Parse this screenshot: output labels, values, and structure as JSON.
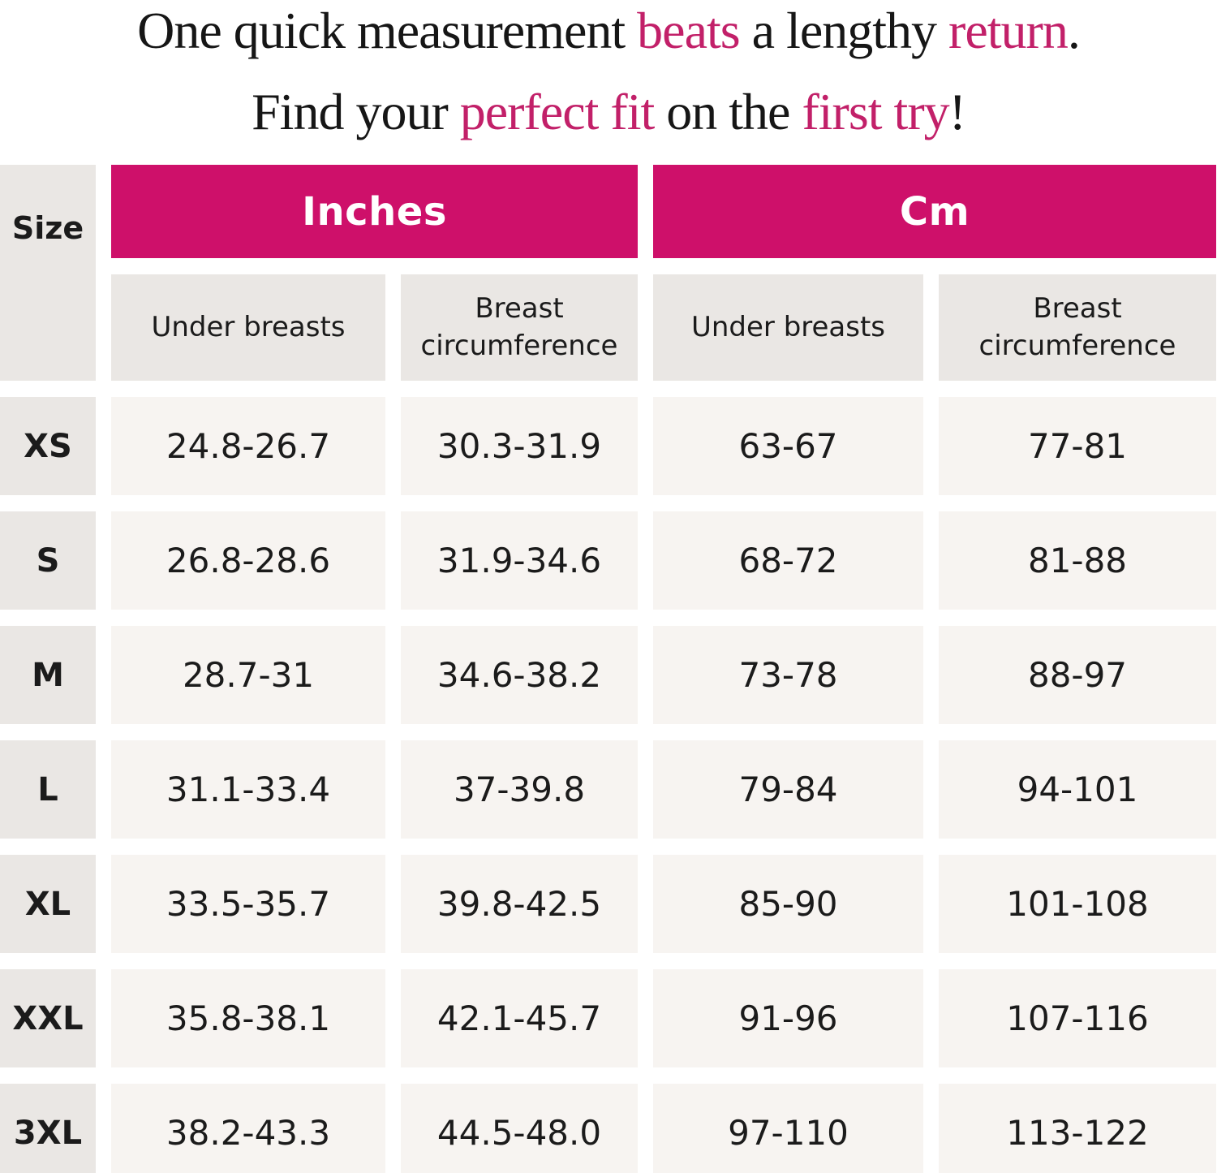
{
  "headline": {
    "line1": [
      "One quick measurement ",
      "beats",
      " a lengthy ",
      "return",
      "."
    ],
    "line2": [
      "Find your ",
      "perfect fit",
      " on the ",
      "first try",
      "!"
    ]
  },
  "table": {
    "size_header": "Size",
    "unit_headers": {
      "inches": "Inches",
      "cm": "Cm"
    },
    "sub_headers": {
      "inches_under": "Under breasts",
      "inches_breast": "Breast circumference",
      "cm_under": "Under breasts",
      "cm_breast": "Breast circumference"
    },
    "rows": [
      {
        "size": "XS",
        "in_under": "24.8-26.7",
        "in_breast": "30.3-31.9",
        "cm_under": "63-67",
        "cm_breast": "77-81"
      },
      {
        "size": "S",
        "in_under": "26.8-28.6",
        "in_breast": "31.9-34.6",
        "cm_under": "68-72",
        "cm_breast": "81-88"
      },
      {
        "size": "M",
        "in_under": "28.7-31",
        "in_breast": "34.6-38.2",
        "cm_under": "73-78",
        "cm_breast": "88-97"
      },
      {
        "size": "L",
        "in_under": "31.1-33.4",
        "in_breast": "37-39.8",
        "cm_under": "79-84",
        "cm_breast": "94-101"
      },
      {
        "size": "XL",
        "in_under": "33.5-35.7",
        "in_breast": "39.8-42.5",
        "cm_under": "85-90",
        "cm_breast": "101-108"
      },
      {
        "size": "XXL",
        "in_under": "35.8-38.1",
        "in_breast": "42.1-45.7",
        "cm_under": "91-96",
        "cm_breast": "107-116"
      },
      {
        "size": "3XL",
        "in_under": "38.2-43.3",
        "in_breast": "44.5-48.0",
        "cm_under": "97-110",
        "cm_breast": "113-122"
      }
    ]
  },
  "colors": {
    "accent_pink": "#c22069",
    "banner_magenta": "#ce106a",
    "banner_text": "#ffffff",
    "header_cell_bg": "#eae7e4",
    "data_cell_bg": "#f7f4f1",
    "text_dark": "#1b1b1b"
  }
}
